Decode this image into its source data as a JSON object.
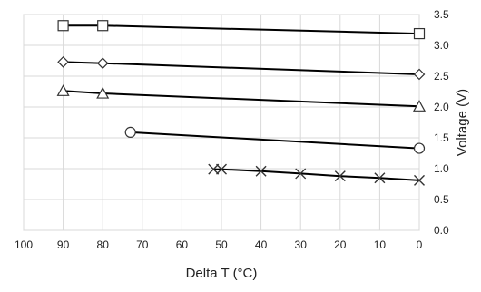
{
  "chart_data": {
    "type": "line",
    "xlabel": "Delta T (°C)",
    "ylabel": "Voltage (V)",
    "xlim": [
      100,
      0
    ],
    "ylim": [
      0,
      3.5
    ],
    "x_ticks": [
      "100",
      "90",
      "80",
      "70",
      "60",
      "50",
      "40",
      "30",
      "20",
      "10",
      "0"
    ],
    "y_ticks": [
      "0.0",
      "0.5",
      "1.0",
      "1.5",
      "2.0",
      "2.5",
      "3.0",
      "3.5"
    ],
    "y_axis_position": "right",
    "grid": true,
    "legend": "none",
    "colors": {
      "line": "#000000",
      "grid": "#d9d9d9",
      "marker_fill": "#ffffff"
    },
    "series": [
      {
        "marker": "square",
        "points": [
          [
            90,
            3.32
          ],
          [
            80,
            3.32
          ],
          [
            0,
            3.19
          ]
        ]
      },
      {
        "marker": "diamond",
        "points": [
          [
            90,
            2.73
          ],
          [
            80,
            2.71
          ],
          [
            0,
            2.53
          ]
        ]
      },
      {
        "marker": "triangle",
        "points": [
          [
            90,
            2.26
          ],
          [
            80,
            2.22
          ],
          [
            0,
            2.01
          ]
        ]
      },
      {
        "marker": "circle",
        "points": [
          [
            73,
            1.59
          ],
          [
            0,
            1.33
          ]
        ]
      },
      {
        "marker": "x",
        "points": [
          [
            52,
            0.99
          ],
          [
            50,
            0.99
          ],
          [
            40,
            0.96
          ],
          [
            30,
            0.92
          ],
          [
            20,
            0.88
          ],
          [
            10,
            0.85
          ],
          [
            0,
            0.81
          ]
        ]
      }
    ]
  }
}
